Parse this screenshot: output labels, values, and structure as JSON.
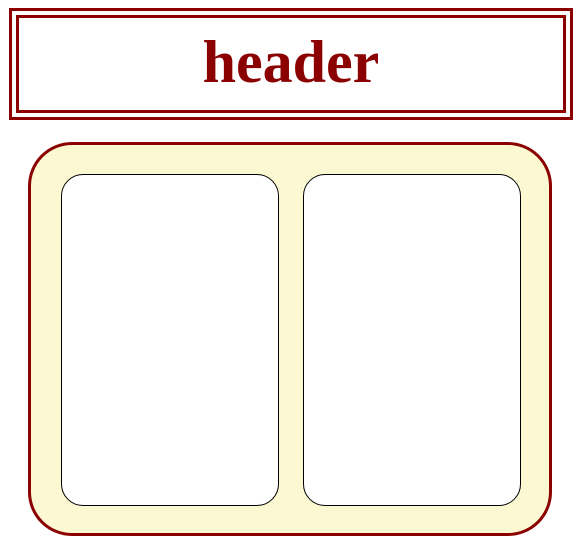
{
  "header": {
    "title": "header"
  },
  "colors": {
    "accent": "#8b0000",
    "panel_background": "#fbf8d2",
    "card_background": "#ffffff",
    "card_border": "#000000"
  },
  "main": {
    "panels": [
      {
        "label": ""
      },
      {
        "label": ""
      }
    ]
  }
}
